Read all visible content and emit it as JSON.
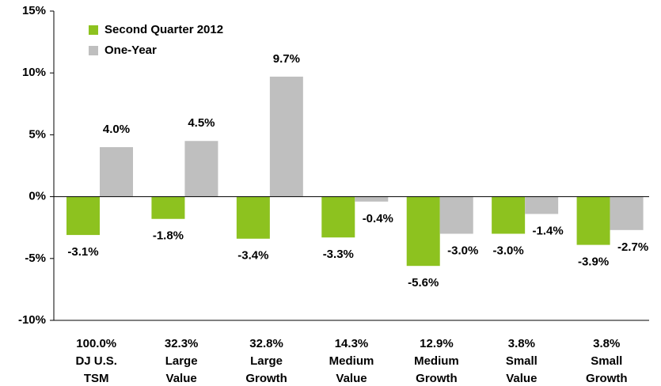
{
  "chart_data": {
    "type": "bar",
    "categories": [
      [
        "100.0%",
        "DJ U.S.",
        "TSM"
      ],
      [
        "32.3%",
        "Large",
        "Value"
      ],
      [
        "32.8%",
        "Large",
        "Growth"
      ],
      [
        "14.3%",
        "Medium",
        "Value"
      ],
      [
        "12.9%",
        "Medium",
        "Growth"
      ],
      [
        "3.8%",
        "Small",
        "Value"
      ],
      [
        "3.8%",
        "Small",
        "Growth"
      ]
    ],
    "series": [
      {
        "name": "Second Quarter 2012",
        "color": "#8dc21f",
        "values": [
          -3.1,
          -1.8,
          -3.4,
          -3.3,
          -5.6,
          -3.0,
          -3.9
        ],
        "value_labels": [
          "-3.1%",
          "-1.8%",
          "-3.4%",
          "-3.3%",
          "-5.6%",
          "-3.0%",
          "-3.9%"
        ]
      },
      {
        "name": "One-Year",
        "color": "#bfbfbf",
        "values": [
          4.0,
          4.5,
          9.7,
          -0.4,
          -3.0,
          -1.4,
          -2.7
        ],
        "value_labels": [
          "4.0%",
          "4.5%",
          "9.7%",
          "-0.4%",
          "-3.0%",
          "-1.4%",
          "-2.7%"
        ]
      }
    ],
    "ylim": [
      -10,
      15
    ],
    "yticks": [
      {
        "value": -10,
        "label": "-10%"
      },
      {
        "value": -5,
        "label": "-5%"
      },
      {
        "value": 0,
        "label": "0%"
      },
      {
        "value": 5,
        "label": "5%"
      },
      {
        "value": 10,
        "label": "10%"
      },
      {
        "value": 15,
        "label": "15%"
      }
    ],
    "legend": "upper left"
  }
}
